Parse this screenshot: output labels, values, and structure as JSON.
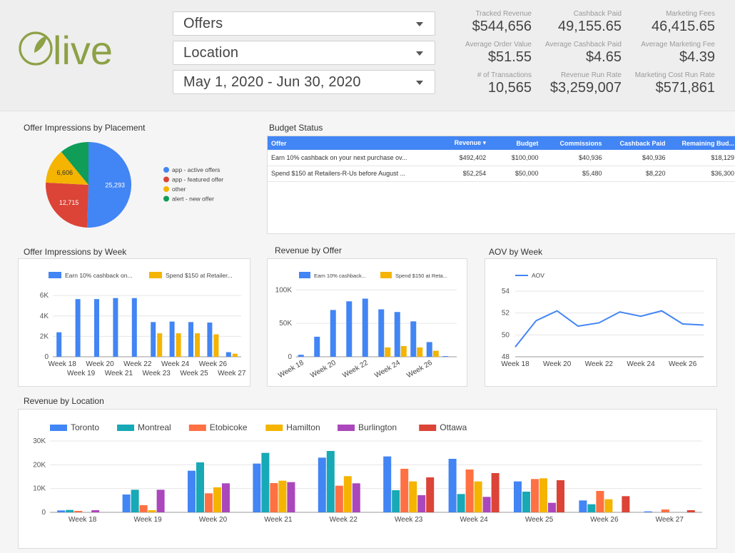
{
  "logo": {
    "text": "live"
  },
  "filters": {
    "offers": "Offers",
    "location": "Location",
    "date_range": "May 1, 2020 - Jun 30, 2020"
  },
  "kpis": [
    {
      "label": "Tracked Revenue",
      "value": "$544,656"
    },
    {
      "label": "Cashback Paid",
      "value": "49,155.65"
    },
    {
      "label": "Marketing Fees",
      "value": "46,415.65"
    },
    {
      "label": "Average Order Value",
      "value": "$51.55"
    },
    {
      "label": "Average Cashback Paid",
      "value": "$4.65"
    },
    {
      "label": "Average Marketing Fee",
      "value": "$4.39"
    },
    {
      "label": "# of Transactions",
      "value": "10,565"
    },
    {
      "label": "Revenue Run Rate",
      "value": "$3,259,007"
    },
    {
      "label": "Marketing Cost Run Rate",
      "value": "$571,861"
    }
  ],
  "titles": {
    "impressions_placement": "Offer Impressions by Placement",
    "budget_status": "Budget Status",
    "impressions_week": "Offer Impressions by Week",
    "revenue_offer": "Revenue by Offer",
    "aov_week": "AOV by Week",
    "revenue_location": "Revenue by Location"
  },
  "budget_table": {
    "headers": [
      "Offer",
      "Revenue ▾",
      "Budget",
      "Commissions",
      "Cashback Paid",
      "Remaining Bud..."
    ],
    "rows": [
      [
        "Earn 10% cashback on your next purchase ov...",
        "$492,402",
        "$100,000",
        "$40,936",
        "$40,936",
        "$18,129"
      ],
      [
        "Spend $150 at Retailers-R-Us before August ...",
        "$52,254",
        "$50,000",
        "$5,480",
        "$8,220",
        "$36,300"
      ]
    ]
  },
  "chart_data": [
    {
      "id": "pie",
      "type": "pie",
      "slices": [
        {
          "label": "app - active offers",
          "value": 25293,
          "display": "25,293",
          "color": "#4285f4"
        },
        {
          "label": "app - featured offer",
          "value": 12715,
          "display": "12,715",
          "color": "#db4437"
        },
        {
          "label": "other",
          "value": 6606,
          "display": "6,606",
          "color": "#f4b400"
        },
        {
          "label": "alert - new offer",
          "value": 5500,
          "display": "",
          "color": "#0f9d58"
        }
      ]
    },
    {
      "id": "impressions_week",
      "type": "bar",
      "categories": [
        "Week 18",
        "Week 19",
        "Week 20",
        "Week 21",
        "Week 22",
        "Week 23",
        "Week 24",
        "Week 25",
        "Week 26",
        "Week 27"
      ],
      "series": [
        {
          "name": "Earn 10% cashback on...",
          "color": "#4285f4",
          "values": [
            2400,
            5650,
            5650,
            5750,
            5750,
            3400,
            3450,
            3400,
            3350,
            450
          ]
        },
        {
          "name": "Spend $150 at Retailer...",
          "color": "#f4b400",
          "values": [
            0,
            0,
            0,
            0,
            0,
            2300,
            2300,
            2300,
            2200,
            300
          ]
        }
      ],
      "yticks": [
        0,
        2000,
        4000,
        6000
      ],
      "ytick_labels": [
        "0",
        "2K",
        "4K",
        "6K"
      ],
      "ylim": [
        0,
        6500
      ]
    },
    {
      "id": "revenue_offer",
      "type": "bar",
      "categories": [
        "Week 18",
        "Week 19",
        "Week 20",
        "Week 21",
        "Week 22",
        "Week 23",
        "Week 24",
        "Week 25",
        "Week 26",
        "Week 27"
      ],
      "x_labels_shown": [
        "Week 18",
        "Week 20",
        "Week 22",
        "Week 24",
        "Week 26"
      ],
      "series": [
        {
          "name": "Earn 10% cashback...",
          "color": "#4285f4",
          "values": [
            3000,
            30000,
            70000,
            83000,
            87000,
            71000,
            67000,
            53000,
            22000,
            1000
          ]
        },
        {
          "name": "Spend $150 at Reta...",
          "color": "#f4b400",
          "values": [
            0,
            0,
            0,
            0,
            0,
            14000,
            16000,
            14000,
            9000,
            0
          ]
        }
      ],
      "yticks": [
        0,
        50000,
        100000
      ],
      "ytick_labels": [
        "0",
        "50K",
        "100K"
      ],
      "ylim": [
        0,
        110000
      ]
    },
    {
      "id": "aov_week",
      "type": "line",
      "categories": [
        "Week 18",
        "Week 19",
        "Week 20",
        "Week 21",
        "Week 22",
        "Week 23",
        "Week 24",
        "Week 25",
        "Week 26",
        "Week 27"
      ],
      "x_labels_shown": [
        "Week 18",
        "Week 20",
        "Week 22",
        "Week 24",
        "Week 26"
      ],
      "series": [
        {
          "name": "AOV",
          "color": "#4285f4",
          "values": [
            48.9,
            51.3,
            52.2,
            50.8,
            51.1,
            52.1,
            51.7,
            52.2,
            51.0,
            50.9
          ]
        }
      ],
      "yticks": [
        48,
        50,
        52,
        54
      ],
      "ytick_labels": [
        "48",
        "50",
        "52",
        "54"
      ],
      "ylim": [
        48,
        54
      ]
    },
    {
      "id": "revenue_location",
      "type": "bar",
      "categories": [
        "Week 18",
        "Week 19",
        "Week 20",
        "Week 21",
        "Week 22",
        "Week 23",
        "Week 24",
        "Week 25",
        "Week 26",
        "Week 27"
      ],
      "series": [
        {
          "name": "Toronto",
          "color": "#4285f4",
          "values": [
            800,
            7500,
            17500,
            20500,
            23000,
            23500,
            22500,
            13000,
            5000,
            400
          ]
        },
        {
          "name": "Montreal",
          "color": "#17a9b6",
          "values": [
            1000,
            9500,
            21000,
            25000,
            25800,
            9300,
            7700,
            8700,
            3400,
            0
          ]
        },
        {
          "name": "Etobicoke",
          "color": "#ff7043",
          "values": [
            600,
            3000,
            8000,
            12300,
            11200,
            18300,
            18000,
            14000,
            9000,
            1200
          ]
        },
        {
          "name": "Hamilton",
          "color": "#f4b400",
          "values": [
            0,
            900,
            10500,
            13300,
            15200,
            13000,
            13000,
            14300,
            5500,
            0
          ]
        },
        {
          "name": "Burlington",
          "color": "#ab47bc",
          "values": [
            900,
            9500,
            12200,
            12700,
            12200,
            7200,
            6500,
            4000,
            0,
            0
          ]
        },
        {
          "name": "Ottawa",
          "color": "#db4437",
          "values": [
            0,
            0,
            0,
            0,
            0,
            14700,
            16500,
            13500,
            6800,
            900
          ]
        }
      ],
      "yticks": [
        0,
        10000,
        20000,
        30000
      ],
      "ytick_labels": [
        "0",
        "10K",
        "20K",
        "30K"
      ],
      "ylim": [
        0,
        30000
      ]
    }
  ],
  "colors": {
    "brand_green": "#8da146",
    "accent_blue": "#4285f4",
    "header_bg": "#eeeeee"
  }
}
